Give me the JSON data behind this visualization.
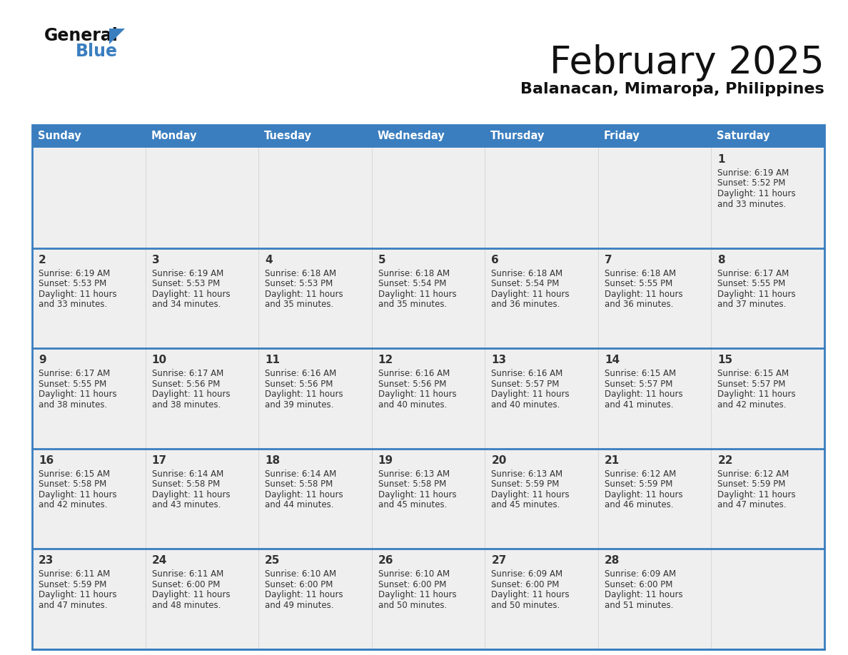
{
  "title": "February 2025",
  "subtitle": "Balanacan, Mimaropa, Philippines",
  "days_of_week": [
    "Sunday",
    "Monday",
    "Tuesday",
    "Wednesday",
    "Thursday",
    "Friday",
    "Saturday"
  ],
  "header_bg": "#3a7ebf",
  "header_text": "#FFFFFF",
  "cell_bg": "#EFEFEF",
  "border_color": "#3a7ebf",
  "day_number_color": "#333333",
  "text_color": "#333333",
  "calendar_data": [
    [
      null,
      null,
      null,
      null,
      null,
      null,
      {
        "day": 1,
        "sunrise": "6:19 AM",
        "sunset": "5:52 PM",
        "daylight": "11 hours",
        "daylight2": "and 33 minutes."
      }
    ],
    [
      {
        "day": 2,
        "sunrise": "6:19 AM",
        "sunset": "5:53 PM",
        "daylight": "11 hours",
        "daylight2": "and 33 minutes."
      },
      {
        "day": 3,
        "sunrise": "6:19 AM",
        "sunset": "5:53 PM",
        "daylight": "11 hours",
        "daylight2": "and 34 minutes."
      },
      {
        "day": 4,
        "sunrise": "6:18 AM",
        "sunset": "5:53 PM",
        "daylight": "11 hours",
        "daylight2": "and 35 minutes."
      },
      {
        "day": 5,
        "sunrise": "6:18 AM",
        "sunset": "5:54 PM",
        "daylight": "11 hours",
        "daylight2": "and 35 minutes."
      },
      {
        "day": 6,
        "sunrise": "6:18 AM",
        "sunset": "5:54 PM",
        "daylight": "11 hours",
        "daylight2": "and 36 minutes."
      },
      {
        "day": 7,
        "sunrise": "6:18 AM",
        "sunset": "5:55 PM",
        "daylight": "11 hours",
        "daylight2": "and 36 minutes."
      },
      {
        "day": 8,
        "sunrise": "6:17 AM",
        "sunset": "5:55 PM",
        "daylight": "11 hours",
        "daylight2": "and 37 minutes."
      }
    ],
    [
      {
        "day": 9,
        "sunrise": "6:17 AM",
        "sunset": "5:55 PM",
        "daylight": "11 hours",
        "daylight2": "and 38 minutes."
      },
      {
        "day": 10,
        "sunrise": "6:17 AM",
        "sunset": "5:56 PM",
        "daylight": "11 hours",
        "daylight2": "and 38 minutes."
      },
      {
        "day": 11,
        "sunrise": "6:16 AM",
        "sunset": "5:56 PM",
        "daylight": "11 hours",
        "daylight2": "and 39 minutes."
      },
      {
        "day": 12,
        "sunrise": "6:16 AM",
        "sunset": "5:56 PM",
        "daylight": "11 hours",
        "daylight2": "and 40 minutes."
      },
      {
        "day": 13,
        "sunrise": "6:16 AM",
        "sunset": "5:57 PM",
        "daylight": "11 hours",
        "daylight2": "and 40 minutes."
      },
      {
        "day": 14,
        "sunrise": "6:15 AM",
        "sunset": "5:57 PM",
        "daylight": "11 hours",
        "daylight2": "and 41 minutes."
      },
      {
        "day": 15,
        "sunrise": "6:15 AM",
        "sunset": "5:57 PM",
        "daylight": "11 hours",
        "daylight2": "and 42 minutes."
      }
    ],
    [
      {
        "day": 16,
        "sunrise": "6:15 AM",
        "sunset": "5:58 PM",
        "daylight": "11 hours",
        "daylight2": "and 42 minutes."
      },
      {
        "day": 17,
        "sunrise": "6:14 AM",
        "sunset": "5:58 PM",
        "daylight": "11 hours",
        "daylight2": "and 43 minutes."
      },
      {
        "day": 18,
        "sunrise": "6:14 AM",
        "sunset": "5:58 PM",
        "daylight": "11 hours",
        "daylight2": "and 44 minutes."
      },
      {
        "day": 19,
        "sunrise": "6:13 AM",
        "sunset": "5:58 PM",
        "daylight": "11 hours",
        "daylight2": "and 45 minutes."
      },
      {
        "day": 20,
        "sunrise": "6:13 AM",
        "sunset": "5:59 PM",
        "daylight": "11 hours",
        "daylight2": "and 45 minutes."
      },
      {
        "day": 21,
        "sunrise": "6:12 AM",
        "sunset": "5:59 PM",
        "daylight": "11 hours",
        "daylight2": "and 46 minutes."
      },
      {
        "day": 22,
        "sunrise": "6:12 AM",
        "sunset": "5:59 PM",
        "daylight": "11 hours",
        "daylight2": "and 47 minutes."
      }
    ],
    [
      {
        "day": 23,
        "sunrise": "6:11 AM",
        "sunset": "5:59 PM",
        "daylight": "11 hours",
        "daylight2": "and 47 minutes."
      },
      {
        "day": 24,
        "sunrise": "6:11 AM",
        "sunset": "6:00 PM",
        "daylight": "11 hours",
        "daylight2": "and 48 minutes."
      },
      {
        "day": 25,
        "sunrise": "6:10 AM",
        "sunset": "6:00 PM",
        "daylight": "11 hours",
        "daylight2": "and 49 minutes."
      },
      {
        "day": 26,
        "sunrise": "6:10 AM",
        "sunset": "6:00 PM",
        "daylight": "11 hours",
        "daylight2": "and 50 minutes."
      },
      {
        "day": 27,
        "sunrise": "6:09 AM",
        "sunset": "6:00 PM",
        "daylight": "11 hours",
        "daylight2": "and 50 minutes."
      },
      {
        "day": 28,
        "sunrise": "6:09 AM",
        "sunset": "6:00 PM",
        "daylight": "11 hours",
        "daylight2": "and 51 minutes."
      },
      null
    ]
  ],
  "logo_triangle_color": "#3a7ebf"
}
